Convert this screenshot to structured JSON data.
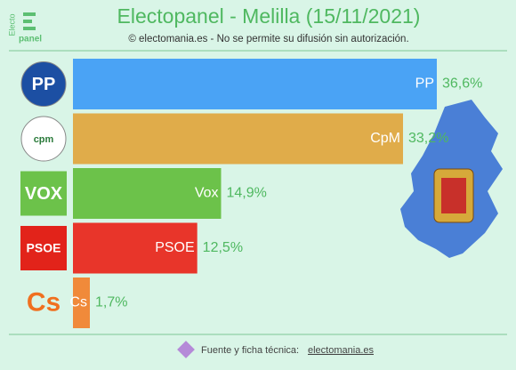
{
  "chart_data": {
    "type": "bar",
    "orientation": "horizontal",
    "title": "Electopanel - Melilla (15/11/2021)",
    "subtitle": "© electomania.es - No se permite su difusión sin autorización.",
    "brand": [
      "Electo",
      "panel"
    ],
    "footer": "Fuente y ficha técnica:",
    "footer_link": "electomania.es",
    "categories": [
      "PP",
      "CpM",
      "Vox",
      "PSOE",
      "Cs"
    ],
    "logo_texts": [
      "PP",
      "cpm",
      "VOX",
      "PSOE",
      "Cs"
    ],
    "values": [
      36.6,
      33.2,
      14.9,
      12.5,
      1.7
    ],
    "value_labels": [
      "36,6%",
      "33,2%",
      "14,9%",
      "12,5%",
      "1,7%"
    ],
    "colors": [
      "#4aa3f5",
      "#e0ac4a",
      "#6cc24a",
      "#e8352a",
      "#f08a3a"
    ]
  }
}
